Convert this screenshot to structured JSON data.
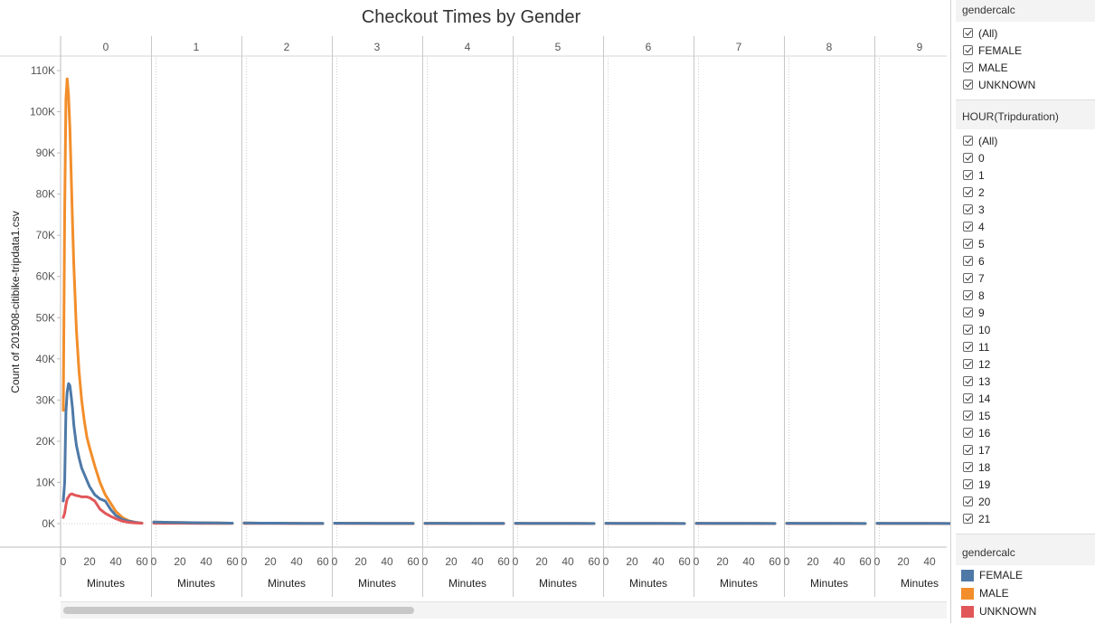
{
  "chart_data": {
    "type": "line",
    "title": "Checkout Times by Gender",
    "ylabel": "Count of 201908-citibike-tripdata1.csv",
    "xlabel": "Minutes",
    "column_headers": [
      "0",
      "1",
      "2",
      "3",
      "4",
      "5",
      "6",
      "7",
      "8",
      "9"
    ],
    "x_ticks": [
      "0",
      "20",
      "40",
      "60"
    ],
    "xlim": [
      0,
      60
    ],
    "y_ticks": [
      "0K",
      "10K",
      "20K",
      "30K",
      "40K",
      "50K",
      "60K",
      "70K",
      "80K",
      "90K",
      "100K",
      "110K"
    ],
    "ylim": [
      0,
      110000
    ],
    "series": [
      {
        "name": "FEMALE",
        "color": "#4e79a7",
        "x": [
          0,
          1,
          2,
          3,
          4,
          5,
          6,
          7,
          8,
          10,
          12,
          14,
          16,
          18,
          20,
          24,
          28,
          32,
          36,
          40,
          45,
          50,
          55,
          60
        ],
        "y": [
          5500,
          10000,
          27000,
          32000,
          34000,
          33500,
          31000,
          28000,
          24000,
          19000,
          16000,
          13500,
          12000,
          10500,
          9000,
          7000,
          6000,
          5500,
          3500,
          2000,
          1000,
          600,
          300,
          100
        ],
        "other_panels": [
          [
            400,
            300,
            250,
            200,
            150,
            100
          ],
          [
            150,
            120,
            100,
            80,
            60,
            50
          ],
          [
            100,
            90,
            80,
            70,
            60,
            50
          ],
          [
            90,
            80,
            70,
            60,
            50,
            40
          ],
          [
            80,
            70,
            60,
            50,
            40,
            30
          ],
          [
            80,
            70,
            60,
            50,
            40,
            30
          ],
          [
            80,
            70,
            60,
            50,
            40,
            30
          ],
          [
            80,
            70,
            60,
            50,
            40,
            30
          ],
          [
            80,
            70,
            60,
            50,
            40,
            30
          ]
        ]
      },
      {
        "name": "MALE",
        "color": "#f28e2b",
        "x": [
          0,
          1,
          2,
          3,
          4,
          5,
          6,
          7,
          8,
          10,
          12,
          14,
          16,
          18,
          20,
          24,
          28,
          32,
          36,
          40,
          45,
          50,
          55,
          60
        ],
        "y": [
          27500,
          75000,
          103000,
          108000,
          104000,
          96000,
          85000,
          73000,
          63000,
          47000,
          37000,
          30000,
          25000,
          21000,
          18500,
          14000,
          10000,
          7000,
          5000,
          3000,
          1500,
          700,
          300,
          100
        ],
        "other_panels": [
          [
            400,
            300,
            250,
            200,
            150,
            100
          ],
          [
            150,
            120,
            100,
            80,
            60,
            50
          ],
          [
            100,
            90,
            80,
            70,
            60,
            50
          ],
          [
            90,
            80,
            70,
            60,
            50,
            40
          ],
          [
            80,
            70,
            60,
            50,
            40,
            30
          ],
          [
            80,
            70,
            60,
            50,
            40,
            30
          ],
          [
            80,
            70,
            60,
            50,
            40,
            30
          ],
          [
            80,
            70,
            60,
            50,
            40,
            30
          ],
          [
            80,
            70,
            60,
            50,
            40,
            30
          ]
        ]
      },
      {
        "name": "UNKNOWN",
        "color": "#e15759",
        "x": [
          0,
          1,
          2,
          3,
          4,
          5,
          6,
          7,
          8,
          10,
          12,
          14,
          16,
          18,
          20,
          24,
          28,
          32,
          36,
          40,
          45,
          50,
          55,
          60
        ],
        "y": [
          1500,
          2500,
          4500,
          6000,
          6500,
          7000,
          7200,
          7200,
          7000,
          6800,
          6700,
          6500,
          6500,
          6500,
          6300,
          5500,
          3500,
          2500,
          1800,
          1200,
          600,
          300,
          150,
          80
        ],
        "other_panels": [
          [
            100,
            90,
            80,
            70,
            60,
            50
          ],
          [
            60,
            50,
            40,
            30,
            20,
            10
          ],
          [
            40,
            35,
            30,
            25,
            20,
            10
          ],
          [
            30,
            25,
            20,
            15,
            10,
            5
          ],
          [
            30,
            25,
            20,
            15,
            10,
            5
          ],
          [
            30,
            25,
            20,
            15,
            10,
            5
          ],
          [
            30,
            25,
            20,
            15,
            10,
            5
          ],
          [
            30,
            25,
            20,
            15,
            10,
            5
          ],
          [
            30,
            25,
            20,
            15,
            10,
            5
          ]
        ]
      }
    ],
    "other_panels_x": [
      0,
      12,
      24,
      36,
      48,
      60
    ],
    "grid": false,
    "legend": "right"
  },
  "filters": [
    {
      "title": "gendercalc",
      "items": [
        "(All)",
        "FEMALE",
        "MALE",
        "UNKNOWN"
      ]
    },
    {
      "title": "HOUR(Tripduration)",
      "items": [
        "(All)",
        "0",
        "1",
        "2",
        "3",
        "4",
        "5",
        "6",
        "7",
        "8",
        "9",
        "10",
        "11",
        "12",
        "13",
        "14",
        "15",
        "16",
        "17",
        "18",
        "19",
        "20",
        "21"
      ]
    }
  ],
  "legend": {
    "title": "gendercalc",
    "items": [
      {
        "label": "FEMALE",
        "color": "#4e79a7"
      },
      {
        "label": "MALE",
        "color": "#f28e2b"
      },
      {
        "label": "UNKNOWN",
        "color": "#e15759"
      }
    ]
  }
}
